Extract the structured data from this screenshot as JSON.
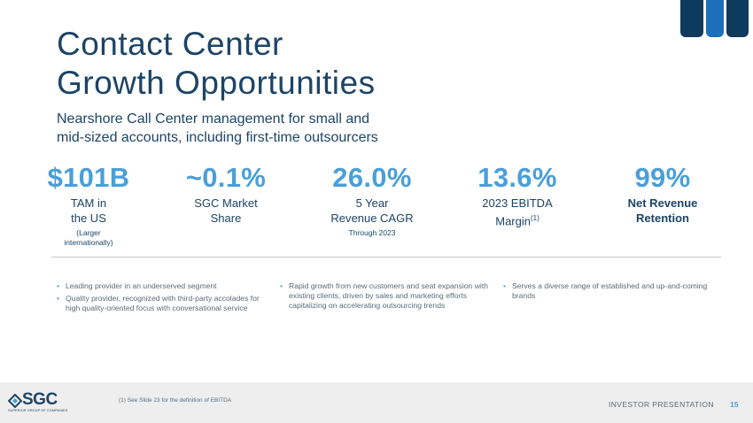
{
  "title_line1": "Contact Center",
  "title_line2": "Growth Opportunities",
  "subtitle_line1": "Nearshore Call Center management for small and",
  "subtitle_line2": "mid-sized accounts, including first-time outsourcers",
  "stats": [
    {
      "value": "$101B",
      "label_line1": "TAM in",
      "label_line2": "the US",
      "note_line1": "(Larger",
      "note_line2": "internationally)"
    },
    {
      "value": "~0.1%",
      "label_line1": "SGC Market",
      "label_line2": "Share"
    },
    {
      "value": "26.0%",
      "label_line1": "5 Year",
      "label_line2": "Revenue CAGR",
      "note_line1": "Through 2023"
    },
    {
      "value": "13.6%",
      "label_line1": "2023 EBITDA",
      "label_line2": "Margin",
      "label_sup": "(1)"
    },
    {
      "value": "99%",
      "label_line1": "Net Revenue",
      "label_line2": "Retention"
    }
  ],
  "bullets_col1": [
    "Leading provider in an underserved segment",
    "Quality provider, recognized with third-party accolades for high quality-oriented focus with conversational service"
  ],
  "bullets_col2": [
    "Rapid growth from new customers and seat expansion with existing clients, driven by sales and marketing efforts capitalizing on accelerating outsourcing trends"
  ],
  "bullets_col3": [
    "Serves a diverse range of established and up-and-coming brands"
  ],
  "footer": {
    "logo_text": "SGC",
    "logo_sub": "SUPERIOR GROUP OF COMPANIES",
    "footnote": "(1) See Slide 23 for the definition of EBITDA",
    "label": "INVESTOR PRESENTATION",
    "page_number": "15"
  },
  "colors": {
    "navy": "#1d4466",
    "accent_blue": "#4a9fd8",
    "dark_bar": "#0e3a5e",
    "mid_bar": "#1c6fb8"
  }
}
